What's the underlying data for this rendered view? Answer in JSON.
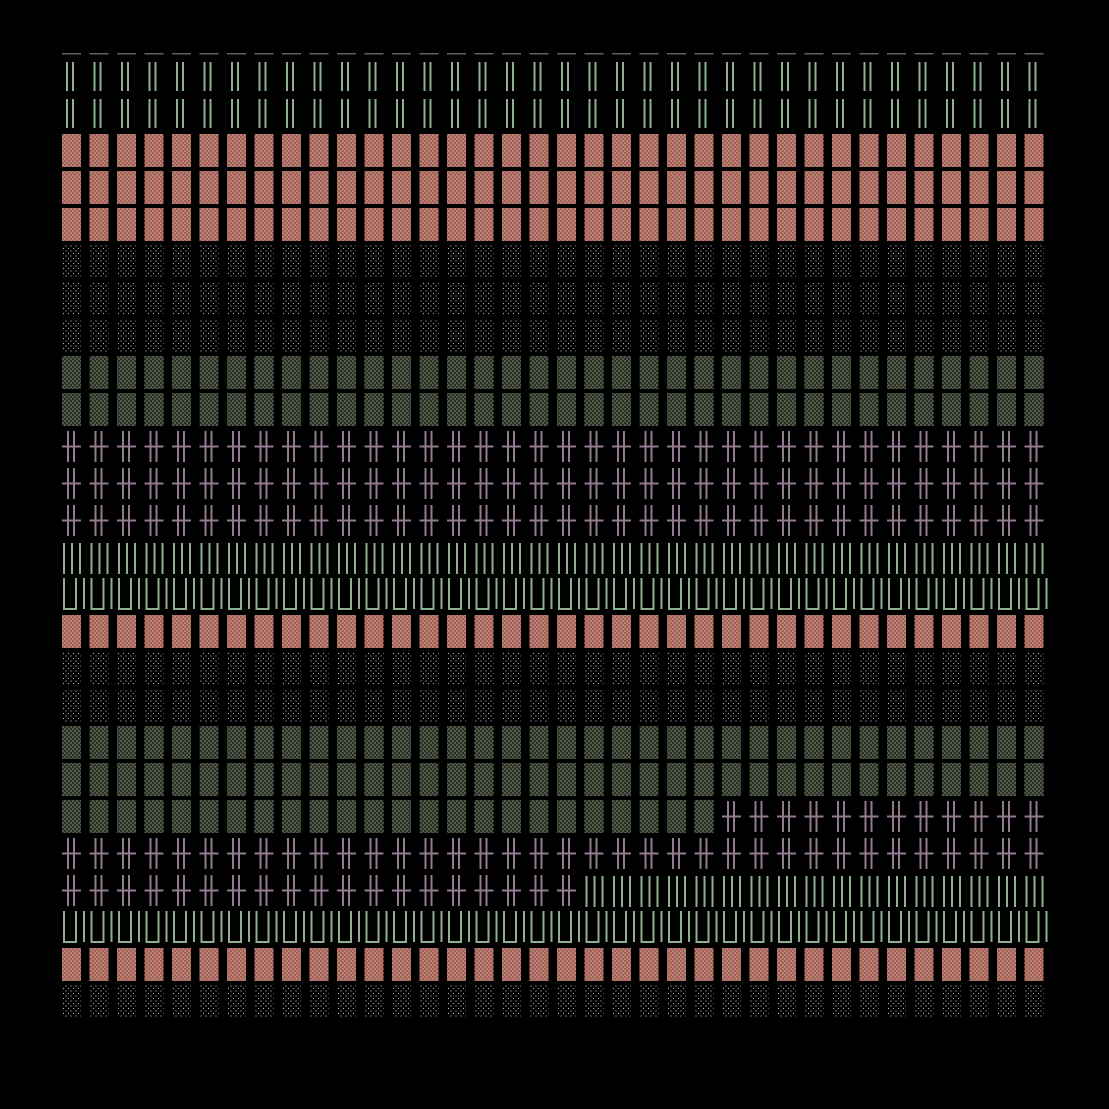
{
  "colors": {
    "background": "#000000",
    "metal_green": "#8fb08f",
    "salmon_fill": "#c07f72",
    "salmon_dot": "#5e3630",
    "dot_gray": "#b8b8b8",
    "olive_fill": "#283024",
    "olive_dot": "#b8c0a8",
    "cross_purple": "#927a90",
    "dot_row": "#a0a0a0"
  },
  "grid": {
    "columns": 36
  },
  "bands": [
    {
      "type": "dots"
    },
    {
      "type": "bars-double"
    },
    {
      "type": "bars-double"
    },
    {
      "type": "salmon"
    },
    {
      "type": "salmon"
    },
    {
      "type": "salmon"
    },
    {
      "type": "gray-dots"
    },
    {
      "type": "gray-dots"
    },
    {
      "type": "gray-dots"
    },
    {
      "type": "olive"
    },
    {
      "type": "olive"
    },
    {
      "type": "crosses"
    },
    {
      "type": "crosses"
    },
    {
      "type": "crosses"
    },
    {
      "type": "bars-triple"
    },
    {
      "type": "bars-u"
    },
    {
      "type": "salmon"
    },
    {
      "type": "gray-dots"
    },
    {
      "type": "gray-dots"
    },
    {
      "type": "olive-mixed",
      "split_col": 0,
      "note": ""
    },
    {
      "type": "olive"
    },
    {
      "type": "split",
      "left": "olive",
      "right": "crosses",
      "split_col": 24
    },
    {
      "type": "crosses"
    },
    {
      "type": "split",
      "left": "crosses",
      "right": "bars-triple",
      "split_col": 19
    },
    {
      "type": "bars-u"
    },
    {
      "type": "salmon"
    },
    {
      "type": "gray-dots"
    }
  ]
}
